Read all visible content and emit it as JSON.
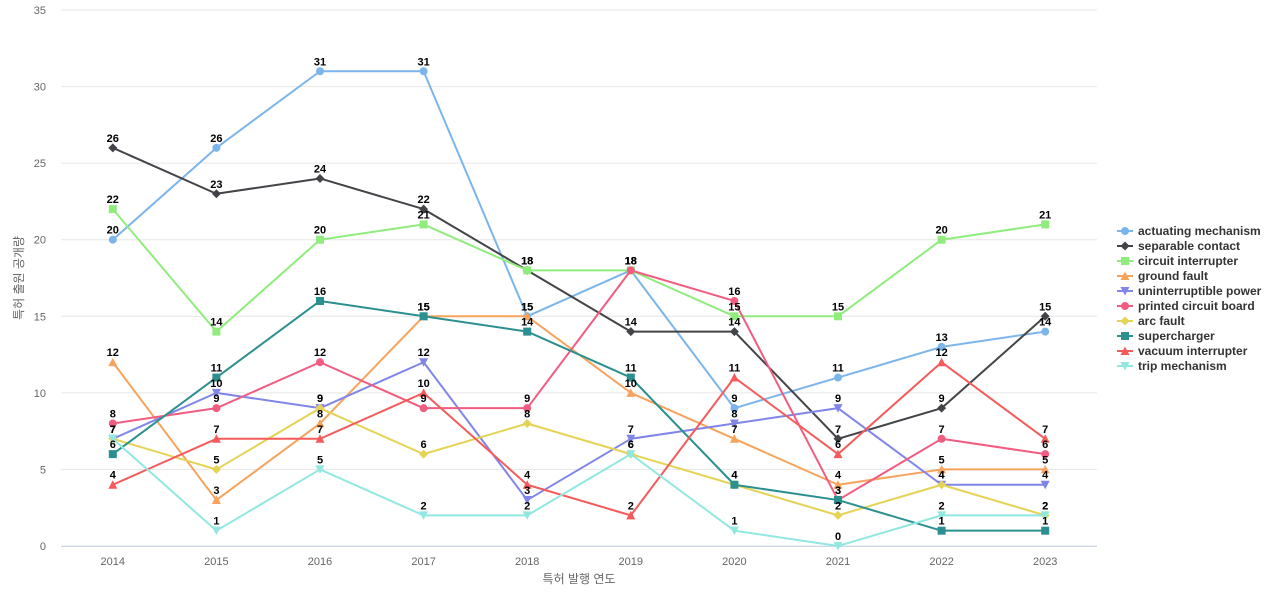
{
  "chart_data": {
    "type": "line",
    "xlabel": "특허 발행 연도",
    "ylabel": "특허 출원 공개량",
    "ylim": [
      0,
      35
    ],
    "yticks": [
      0,
      5,
      10,
      15,
      20,
      25,
      30,
      35
    ],
    "grid": true,
    "legend_position": "right",
    "categories": [
      "2014",
      "2015",
      "2016",
      "2017",
      "2018",
      "2019",
      "2020",
      "2021",
      "2022",
      "2023"
    ],
    "series": [
      {
        "name": "actuating mechanism",
        "color": "#7cb5ec",
        "marker": "circle",
        "values": [
          20,
          26,
          31,
          31,
          15,
          18,
          9,
          11,
          13,
          14
        ]
      },
      {
        "name": "separable contact",
        "color": "#434348",
        "marker": "diamond",
        "values": [
          26,
          23,
          24,
          22,
          18,
          14,
          14,
          7,
          9,
          15
        ]
      },
      {
        "name": "circuit interrupter",
        "color": "#90ed7d",
        "marker": "square",
        "values": [
          22,
          14,
          20,
          21,
          18,
          18,
          15,
          15,
          20,
          21
        ]
      },
      {
        "name": "ground fault",
        "color": "#f7a35c",
        "marker": "triangle",
        "values": [
          12,
          3,
          8,
          15,
          15,
          10,
          7,
          4,
          5,
          5
        ]
      },
      {
        "name": "uninterruptible power",
        "color": "#8085e9",
        "marker": "triangle-down",
        "values": [
          7,
          10,
          9,
          12,
          3,
          7,
          8,
          9,
          4,
          4
        ]
      },
      {
        "name": "printed circuit board",
        "color": "#f15c80",
        "marker": "circle",
        "values": [
          8,
          9,
          12,
          9,
          9,
          18,
          16,
          3,
          7,
          6
        ]
      },
      {
        "name": "arc fault",
        "color": "#e4d354",
        "marker": "diamond",
        "values": [
          7,
          5,
          9,
          6,
          8,
          6,
          4,
          2,
          4,
          2
        ]
      },
      {
        "name": "supercharger",
        "color": "#2b908f",
        "marker": "square",
        "values": [
          6,
          11,
          16,
          15,
          14,
          11,
          4,
          3,
          1,
          1
        ]
      },
      {
        "name": "vacuum interrupter",
        "color": "#f45b5b",
        "marker": "triangle",
        "values": [
          4,
          7,
          7,
          10,
          4,
          2,
          11,
          6,
          12,
          7
        ]
      },
      {
        "name": "trip mechanism",
        "color": "#91e8e1",
        "marker": "triangle-down",
        "values": [
          7,
          1,
          5,
          2,
          2,
          6,
          1,
          0,
          2,
          2
        ]
      }
    ]
  }
}
